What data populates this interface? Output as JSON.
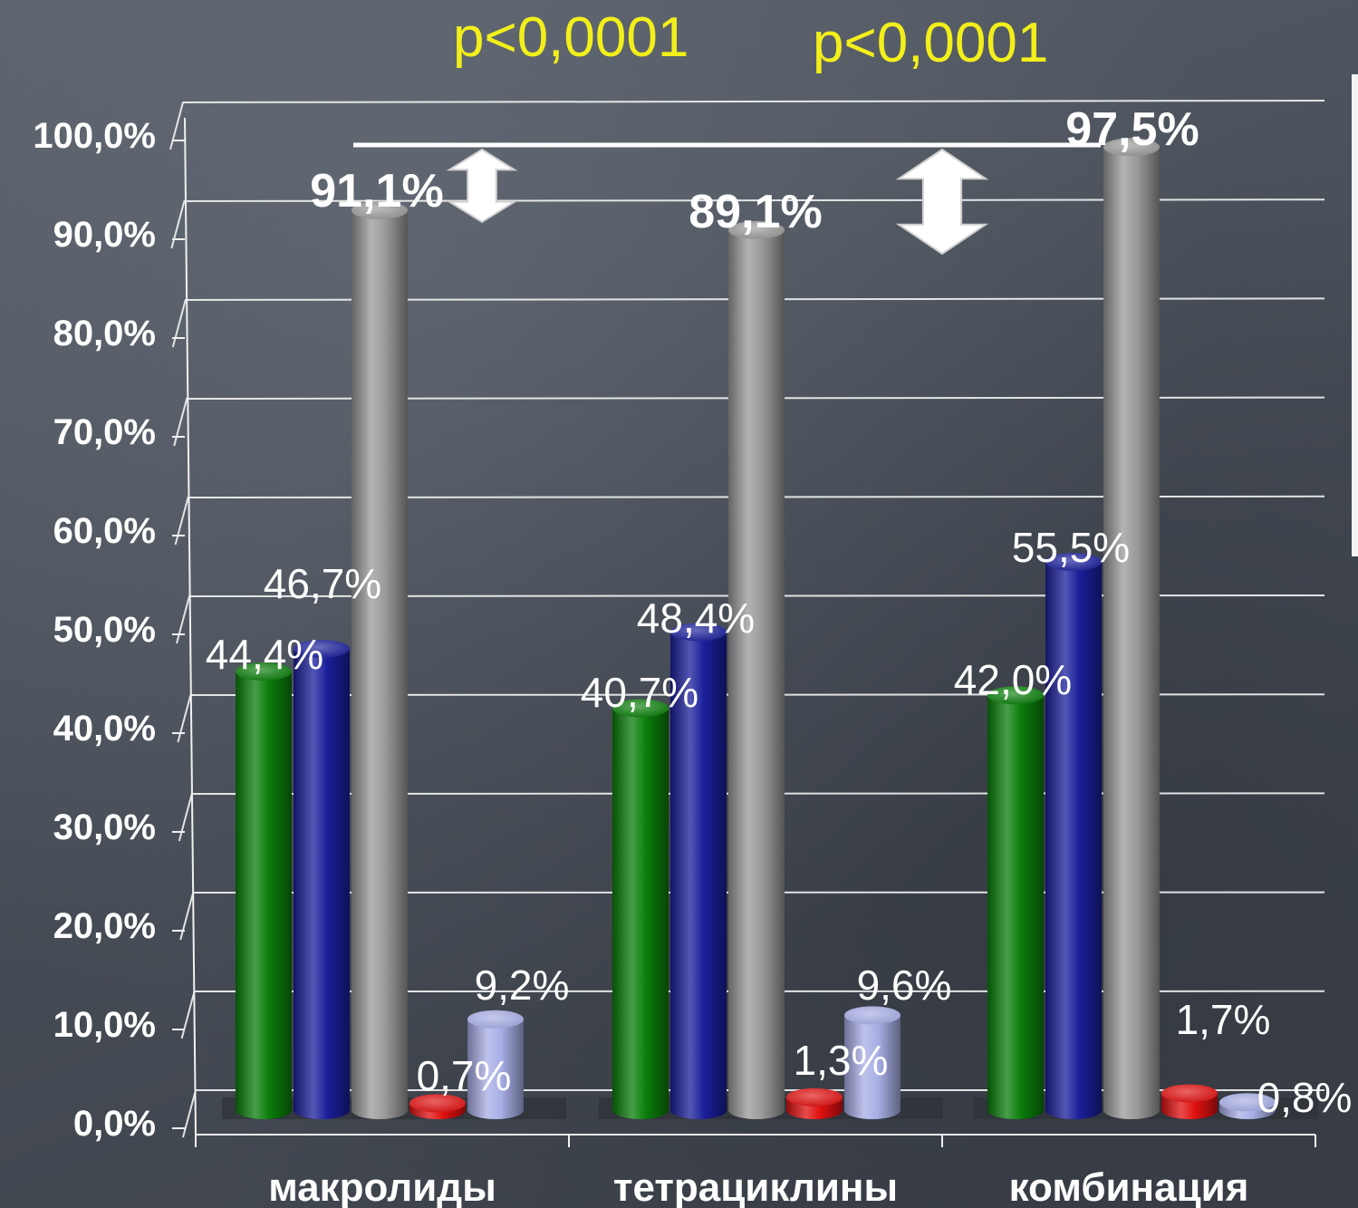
{
  "annotations": {
    "pvalue_left": "p<0,0001",
    "pvalue_right": "p<0,0001"
  },
  "colors": {
    "background": "#4a5059",
    "annotation": "#f2ef1a",
    "grid": "#f0f0f0",
    "series": [
      "#0a7d0a",
      "#1a1f9a",
      "#9a9a9a",
      "#e01010",
      "#a8aee6"
    ]
  },
  "chart_data": {
    "type": "bar",
    "style": "3d-cylinder",
    "categories": [
      "макролиды",
      "тетрациклины",
      "комбинация"
    ],
    "series": [
      {
        "values": [
          44.4,
          40.7,
          42.0
        ],
        "labels": [
          "44,4%",
          "40,7%",
          "42,0%"
        ]
      },
      {
        "values": [
          46.7,
          48.4,
          55.5
        ],
        "labels": [
          "46,7%",
          "48,4%",
          "55,5%"
        ]
      },
      {
        "values": [
          91.1,
          89.1,
          97.5
        ],
        "labels": [
          "91,1%",
          "89,1%",
          "97,5%"
        ]
      },
      {
        "values": [
          0.7,
          1.3,
          1.7
        ],
        "labels": [
          "0,7%",
          "1,3%",
          "1,7%"
        ]
      },
      {
        "values": [
          9.2,
          9.6,
          0.8
        ],
        "labels": [
          "9,2%",
          "9,6%",
          "0,8%"
        ]
      }
    ],
    "ylim": [
      0,
      100
    ],
    "yticks": [
      "0,0%",
      "10,0%",
      "20,0%",
      "30,0%",
      "40,0%",
      "50,0%",
      "60,0%",
      "70,0%",
      "80,0%",
      "90,0%",
      "100,0%"
    ],
    "grid": true,
    "legend": "none",
    "xlabel": "",
    "ylabel": ""
  }
}
